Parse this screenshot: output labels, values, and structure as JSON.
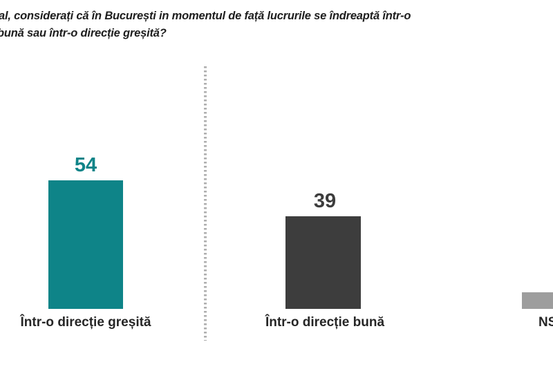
{
  "page": {
    "background": "#ffffff"
  },
  "title": {
    "line1": "al, considerați că în București in momentul de față lucrurile se îndreaptă într-o",
    "line2": "bună sau într-o direcție greșită?",
    "color": "#1e1e1e",
    "note_visible_state": "question text cropped at left edge of image"
  },
  "chart_data": {
    "type": "bar",
    "title": "al, considerați că în București in momentul de față lucrurile se îndreaptă într-o bună sau într-o direcție greșită?",
    "categories": [
      "Într-o direcție greșită",
      "Într-o direcție bună",
      "NS"
    ],
    "values": [
      54,
      39,
      7
    ],
    "value_labels": [
      "54",
      "39",
      ""
    ],
    "bar_colors": [
      "#0e8488",
      "#3d3d3d",
      "#9d9d9d"
    ],
    "value_label_colors": [
      "#0e8488",
      "#3d3d3d",
      "#3d3d3d"
    ],
    "category_label_color": "#262626",
    "ylim": [
      0,
      58
    ],
    "grid": false,
    "legend": false,
    "layout_hints": {
      "orientation": "vertical",
      "dashed_divider_between_first_and_second_panel": true,
      "third_bar_cropped_at_right_edge": true,
      "divider_color": "#aeaeae"
    }
  }
}
